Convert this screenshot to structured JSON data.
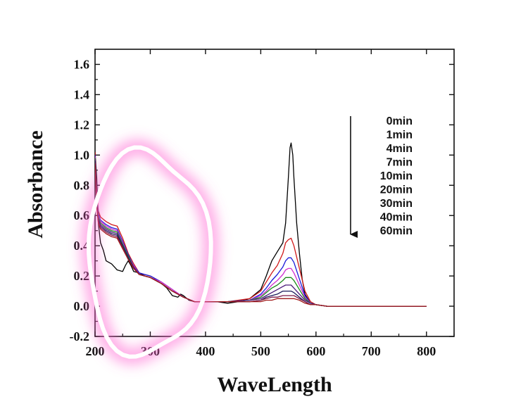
{
  "chart_data": {
    "type": "line",
    "title": "",
    "xlabel": "WaveLength",
    "ylabel": "Absorbance",
    "xlim": [
      200,
      850
    ],
    "ylim": [
      -0.2,
      1.7
    ],
    "xticks": [
      200,
      300,
      400,
      500,
      600,
      700,
      800
    ],
    "yticks": [
      -0.2,
      0.0,
      0.2,
      0.4,
      0.6,
      0.8,
      1.0,
      1.2,
      1.4,
      1.6
    ],
    "xtick_labels": [
      "200",
      "300",
      "400",
      "500",
      "600",
      "700",
      "800"
    ],
    "ytick_labels": [
      "-0.2",
      "0.0",
      "0.2",
      "0.4",
      "0.6",
      "0.8",
      "1.0",
      "1.2",
      "1.4",
      "1.6"
    ],
    "legend": {
      "placement": "top-right",
      "entries": [
        "0min",
        "1min",
        "4min",
        "7min",
        "10min",
        "20min",
        "30min",
        "40min",
        "60min"
      ],
      "arrow_direction": "down"
    },
    "annotation": {
      "type": "freehand-highlight-ellipse",
      "color": "#ff5fd0",
      "region_x": [
        200,
        370
      ],
      "region_y": [
        -0.25,
        0.95
      ]
    },
    "series": [
      {
        "name": "0min",
        "color": "#000000",
        "x": [
          200,
          203,
          206,
          210,
          215,
          220,
          230,
          240,
          250,
          255,
          260,
          265,
          270,
          280,
          290,
          300,
          310,
          320,
          330,
          340,
          350,
          355,
          360,
          370,
          380,
          400,
          420,
          440,
          460,
          480,
          500,
          510,
          520,
          530,
          540,
          545,
          550,
          553,
          555,
          558,
          560,
          565,
          570,
          575,
          580,
          590,
          600,
          620,
          650,
          700,
          750,
          800
        ],
        "y": [
          1.02,
          0.85,
          0.55,
          0.42,
          0.37,
          0.3,
          0.28,
          0.24,
          0.23,
          0.27,
          0.3,
          0.27,
          0.23,
          0.22,
          0.2,
          0.19,
          0.17,
          0.15,
          0.12,
          0.07,
          0.06,
          0.08,
          0.07,
          0.04,
          0.03,
          0.03,
          0.03,
          0.02,
          0.03,
          0.05,
          0.11,
          0.2,
          0.3,
          0.36,
          0.42,
          0.55,
          0.85,
          1.05,
          1.08,
          1.0,
          0.85,
          0.55,
          0.35,
          0.18,
          0.08,
          0.02,
          0.01,
          0.0,
          0.0,
          0.0,
          0.0,
          0.0
        ]
      },
      {
        "name": "1min",
        "color": "#d01818",
        "x": [
          200,
          203,
          206,
          210,
          220,
          230,
          240,
          250,
          260,
          270,
          280,
          290,
          300,
          320,
          340,
          360,
          380,
          400,
          440,
          480,
          500,
          510,
          520,
          530,
          540,
          545,
          550,
          555,
          560,
          570,
          580,
          590,
          600,
          620,
          700,
          800
        ],
        "y": [
          1.02,
          0.75,
          0.63,
          0.59,
          0.56,
          0.54,
          0.53,
          0.45,
          0.35,
          0.28,
          0.22,
          0.21,
          0.2,
          0.16,
          0.11,
          0.06,
          0.03,
          0.03,
          0.03,
          0.05,
          0.1,
          0.16,
          0.22,
          0.27,
          0.35,
          0.42,
          0.44,
          0.45,
          0.4,
          0.25,
          0.1,
          0.03,
          0.01,
          0.0,
          0.0,
          0.0
        ]
      },
      {
        "name": "4min",
        "color": "#1a1ad8",
        "x": [
          200,
          203,
          206,
          210,
          220,
          230,
          240,
          250,
          260,
          270,
          280,
          290,
          300,
          320,
          340,
          360,
          380,
          400,
          440,
          480,
          500,
          510,
          520,
          530,
          540,
          545,
          550,
          555,
          560,
          570,
          580,
          590,
          600,
          620,
          700,
          800
        ],
        "y": [
          1.0,
          0.72,
          0.61,
          0.57,
          0.54,
          0.52,
          0.51,
          0.43,
          0.34,
          0.27,
          0.22,
          0.21,
          0.2,
          0.16,
          0.11,
          0.06,
          0.03,
          0.03,
          0.03,
          0.04,
          0.08,
          0.12,
          0.17,
          0.21,
          0.26,
          0.3,
          0.32,
          0.32,
          0.29,
          0.18,
          0.07,
          0.02,
          0.01,
          0.0,
          0.0,
          0.0
        ]
      },
      {
        "name": "7min",
        "color": "#d030d0",
        "x": [
          200,
          203,
          206,
          210,
          220,
          230,
          240,
          250,
          260,
          270,
          280,
          290,
          300,
          320,
          340,
          360,
          380,
          400,
          440,
          480,
          500,
          510,
          520,
          530,
          540,
          545,
          550,
          555,
          560,
          570,
          580,
          590,
          600,
          620,
          700,
          800
        ],
        "y": [
          0.99,
          0.71,
          0.6,
          0.56,
          0.53,
          0.51,
          0.5,
          0.42,
          0.33,
          0.27,
          0.21,
          0.2,
          0.19,
          0.16,
          0.11,
          0.06,
          0.03,
          0.03,
          0.03,
          0.04,
          0.07,
          0.1,
          0.14,
          0.17,
          0.21,
          0.24,
          0.25,
          0.25,
          0.22,
          0.14,
          0.06,
          0.02,
          0.01,
          0.0,
          0.0,
          0.0
        ]
      },
      {
        "name": "10min",
        "color": "#1a8a1a",
        "x": [
          200,
          203,
          206,
          210,
          220,
          230,
          240,
          250,
          260,
          270,
          280,
          290,
          300,
          320,
          340,
          360,
          380,
          400,
          440,
          480,
          500,
          510,
          520,
          530,
          540,
          545,
          550,
          555,
          560,
          570,
          580,
          590,
          600,
          620,
          700,
          800
        ],
        "y": [
          0.98,
          0.7,
          0.59,
          0.55,
          0.52,
          0.5,
          0.49,
          0.41,
          0.33,
          0.26,
          0.21,
          0.2,
          0.19,
          0.15,
          0.1,
          0.06,
          0.03,
          0.03,
          0.03,
          0.04,
          0.06,
          0.09,
          0.12,
          0.14,
          0.17,
          0.19,
          0.19,
          0.19,
          0.17,
          0.11,
          0.05,
          0.02,
          0.01,
          0.0,
          0.0,
          0.0
        ]
      },
      {
        "name": "20min",
        "color": "#4a1a7a",
        "x": [
          200,
          203,
          206,
          210,
          220,
          230,
          240,
          250,
          260,
          270,
          280,
          290,
          300,
          320,
          340,
          360,
          380,
          400,
          440,
          480,
          500,
          510,
          520,
          530,
          540,
          545,
          550,
          555,
          560,
          570,
          580,
          590,
          600,
          620,
          700,
          800
        ],
        "y": [
          0.97,
          0.69,
          0.58,
          0.54,
          0.51,
          0.49,
          0.48,
          0.4,
          0.32,
          0.26,
          0.21,
          0.2,
          0.19,
          0.15,
          0.1,
          0.06,
          0.03,
          0.03,
          0.03,
          0.04,
          0.05,
          0.07,
          0.09,
          0.11,
          0.13,
          0.14,
          0.14,
          0.14,
          0.12,
          0.08,
          0.04,
          0.02,
          0.01,
          0.0,
          0.0,
          0.0
        ]
      },
      {
        "name": "30min",
        "color": "#1a1a5a",
        "x": [
          200,
          203,
          206,
          210,
          220,
          230,
          240,
          250,
          260,
          270,
          280,
          290,
          300,
          320,
          340,
          360,
          380,
          400,
          440,
          480,
          500,
          510,
          520,
          530,
          540,
          545,
          550,
          555,
          560,
          570,
          580,
          590,
          600,
          620,
          700,
          800
        ],
        "y": [
          0.96,
          0.68,
          0.57,
          0.53,
          0.5,
          0.48,
          0.47,
          0.4,
          0.32,
          0.25,
          0.21,
          0.2,
          0.19,
          0.15,
          0.1,
          0.06,
          0.03,
          0.03,
          0.03,
          0.03,
          0.04,
          0.06,
          0.07,
          0.08,
          0.1,
          0.1,
          0.1,
          0.1,
          0.09,
          0.06,
          0.03,
          0.01,
          0.01,
          0.0,
          0.0,
          0.0
        ]
      },
      {
        "name": "40min",
        "color": "#7a1a4a",
        "x": [
          200,
          203,
          206,
          210,
          220,
          230,
          240,
          250,
          260,
          270,
          280,
          290,
          300,
          320,
          340,
          360,
          380,
          400,
          440,
          480,
          500,
          510,
          520,
          530,
          540,
          545,
          550,
          555,
          560,
          570,
          580,
          590,
          600,
          620,
          700,
          800
        ],
        "y": [
          0.95,
          0.67,
          0.56,
          0.52,
          0.49,
          0.47,
          0.46,
          0.39,
          0.31,
          0.25,
          0.21,
          0.2,
          0.19,
          0.15,
          0.1,
          0.06,
          0.03,
          0.03,
          0.03,
          0.03,
          0.04,
          0.05,
          0.06,
          0.06,
          0.07,
          0.07,
          0.07,
          0.07,
          0.07,
          0.05,
          0.03,
          0.01,
          0.01,
          0.0,
          0.0,
          0.0
        ]
      },
      {
        "name": "60min",
        "color": "#a01a1a",
        "x": [
          200,
          203,
          206,
          210,
          220,
          230,
          240,
          250,
          260,
          270,
          280,
          290,
          300,
          320,
          340,
          360,
          380,
          400,
          440,
          480,
          500,
          510,
          520,
          530,
          540,
          545,
          550,
          555,
          560,
          570,
          580,
          590,
          600,
          620,
          700,
          800
        ],
        "y": [
          0.94,
          0.66,
          0.55,
          0.51,
          0.48,
          0.46,
          0.45,
          0.38,
          0.31,
          0.25,
          0.21,
          0.2,
          0.19,
          0.15,
          0.1,
          0.06,
          0.03,
          0.03,
          0.03,
          0.03,
          0.03,
          0.04,
          0.04,
          0.05,
          0.05,
          0.05,
          0.05,
          0.05,
          0.05,
          0.04,
          0.02,
          0.01,
          0.01,
          0.0,
          0.0,
          0.0
        ]
      }
    ]
  }
}
